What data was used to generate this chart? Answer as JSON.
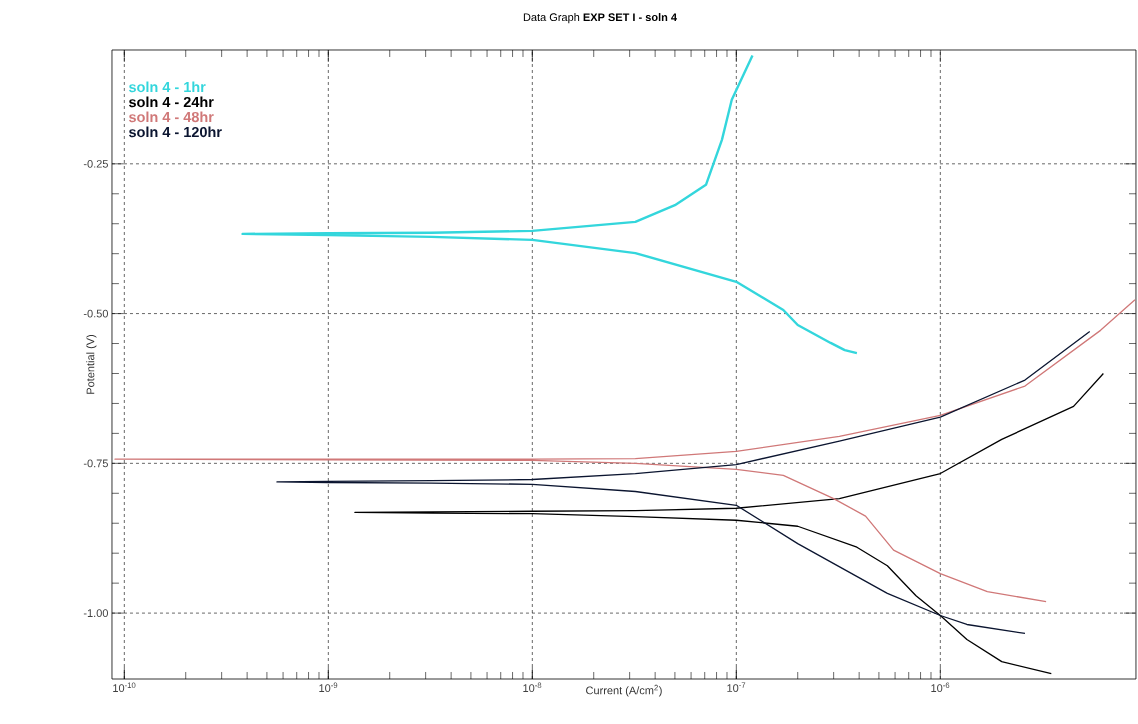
{
  "chart_data": {
    "type": "line",
    "title": "Data Graph  **EXP SET I - soln 4**",
    "xlabel": "Current (A/cm$^{2}$)",
    "ylabel": "Potential (V)",
    "log": "x",
    "grid": true,
    "legend": "top left",
    "marker": "none",
    "line_style": "solid",
    "xlim": [
      8.7e-11,
      9.1e-06
    ],
    "ylim": [
      -1.11,
      -0.06
    ],
    "xticks": [
      {
        "value": 1e-10,
        "label": "10$^{-10}$"
      },
      {
        "value": 1e-09,
        "label": "10$^{-9}$"
      },
      {
        "value": 1e-08,
        "label": "10$^{-8}$"
      },
      {
        "value": 1e-07,
        "label": "10$^{-7}$"
      },
      {
        "value": 1e-06,
        "label": "10$^{-6}$"
      }
    ],
    "yticks": [
      {
        "value": -0.25,
        "label": "-0.25"
      },
      {
        "value": -0.5,
        "label": "-0.50"
      },
      {
        "value": -0.75,
        "label": "-0.75"
      },
      {
        "value": -1.0,
        "label": "-1.00"
      }
    ],
    "series": [
      {
        "name": "soln 4 - 1hr",
        "color": "#33d6dc",
        "x": [
          3.9e-07,
          3.4e-07,
          2.9e-07,
          2e-07,
          1.7e-07,
          1e-07,
          3.2e-08,
          1e-08,
          3.2e-09,
          1e-09,
          3.8e-10,
          1e-09,
          3.2e-09,
          1e-08,
          3.2e-08,
          5e-08,
          7.1e-08,
          8.5e-08,
          9.5e-08,
          1.2e-07
        ],
        "values": [
          -0.566,
          -0.561,
          -0.549,
          -0.519,
          -0.494,
          -0.447,
          -0.399,
          -0.377,
          -0.372,
          -0.369,
          -0.367,
          -0.366,
          -0.365,
          -0.362,
          -0.347,
          -0.319,
          -0.285,
          -0.21,
          -0.143,
          -0.069
        ]
      },
      {
        "name": "soln 4 - 24hr",
        "color": "#000000",
        "x": [
          3.5e-06,
          2e-06,
          1.35e-06,
          1e-06,
          7.6e-07,
          5.5e-07,
          3.9e-07,
          2e-07,
          1e-07,
          3.2e-08,
          1e-08,
          3.2e-09,
          1.35e-09,
          3.2e-09,
          1e-08,
          3.2e-08,
          1e-07,
          3.2e-07,
          1e-06,
          2e-06,
          4.5e-06,
          6.3e-06
        ],
        "values": [
          -1.101,
          -1.081,
          -1.044,
          -1.004,
          -0.971,
          -0.921,
          -0.89,
          -0.855,
          -0.845,
          -0.839,
          -0.834,
          -0.833,
          -0.832,
          -0.831,
          -0.83,
          -0.829,
          -0.825,
          -0.809,
          -0.767,
          -0.71,
          -0.655,
          -0.6
        ]
      },
      {
        "name": "soln 4 - 48hr",
        "color": "#d07878",
        "x": [
          3.3e-06,
          1.7e-06,
          1e-06,
          5.9e-07,
          4.3e-07,
          3e-07,
          1.7e-07,
          1e-07,
          3.2e-08,
          1e-08,
          1e-09,
          9e-11,
          1e-09,
          1e-08,
          3.2e-08,
          1e-07,
          3.2e-07,
          1e-06,
          2.6e-06,
          6.1e-06,
          9e-06
        ],
        "values": [
          -0.981,
          -0.964,
          -0.934,
          -0.895,
          -0.838,
          -0.809,
          -0.77,
          -0.76,
          -0.75,
          -0.745,
          -0.744,
          -0.743,
          -0.743,
          -0.743,
          -0.742,
          -0.73,
          -0.705,
          -0.67,
          -0.621,
          -0.528,
          -0.477
        ]
      },
      {
        "name": "soln 4 - 120hr",
        "color": "#0b1530",
        "x": [
          2.6e-06,
          1.35e-06,
          1e-06,
          5.5e-07,
          2e-07,
          1e-07,
          3.2e-08,
          1e-08,
          3.2e-09,
          1e-09,
          5.6e-10,
          1e-09,
          3.2e-09,
          1e-08,
          3.2e-08,
          1e-07,
          3.2e-07,
          1e-06,
          2.6e-06,
          5.4e-06
        ],
        "values": [
          -1.034,
          -1.019,
          -1.004,
          -0.967,
          -0.884,
          -0.82,
          -0.797,
          -0.785,
          -0.783,
          -0.782,
          -0.781,
          -0.78,
          -0.779,
          -0.777,
          -0.767,
          -0.752,
          -0.713,
          -0.673,
          -0.611,
          -0.53
        ]
      }
    ]
  }
}
